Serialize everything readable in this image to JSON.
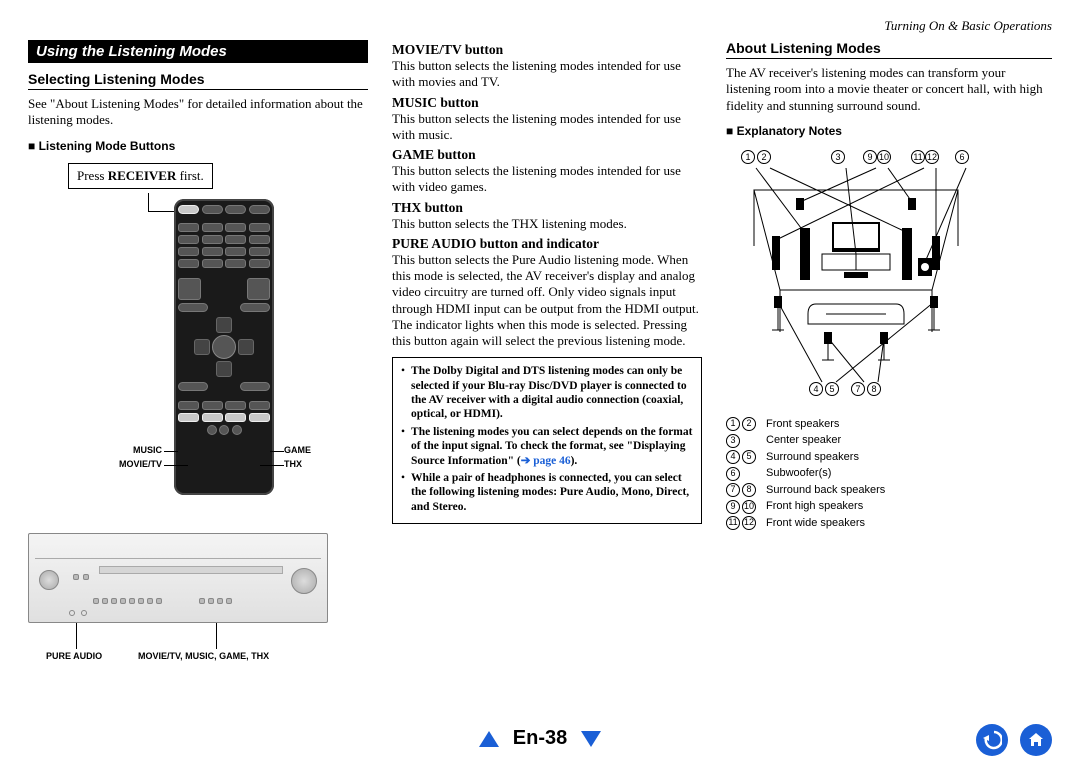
{
  "breadcrumb": "Turning On & Basic Operations",
  "banner": "Using the Listening Modes",
  "left": {
    "h2": "Selecting Listening Modes",
    "intro": "See \"About Listening Modes\" for detailed information about the listening modes.",
    "buttons_heading": "Listening Mode Buttons",
    "callout_prefix": "Press ",
    "callout_bold": "RECEIVER",
    "callout_suffix": " first.",
    "remote_labels": {
      "music": "MUSIC",
      "movietv": "MOVIE/TV",
      "game": "GAME",
      "thx": "THX"
    },
    "receiver_labels": {
      "pure": "PURE AUDIO",
      "modes": "MOVIE/TV, MUSIC, GAME, THX"
    }
  },
  "mid": {
    "items": [
      {
        "title": "MOVIE/TV button",
        "text": "This button selects the listening modes intended for use with movies and TV."
      },
      {
        "title": "MUSIC button",
        "text": "This button selects the listening modes intended for use with music."
      },
      {
        "title": "GAME button",
        "text": "This button selects the listening modes intended for use with video games."
      },
      {
        "title": "THX button",
        "text": "This button selects the THX listening modes."
      },
      {
        "title": "PURE AUDIO button and indicator",
        "text": "This button selects the Pure Audio listening mode. When this mode is selected, the AV receiver's display and analog video circuitry are turned off. Only video signals input through HDMI input can be output from the HDMI output. The indicator lights when this mode is selected. Pressing this button again will select the previous listening mode."
      }
    ],
    "notes": [
      {
        "pre": "The Dolby Digital and DTS listening modes can only be selected if your Blu-ray Disc/DVD player is connected to the AV receiver with a digital audio connection (coaxial, optical, or HDMI).",
        "link": ""
      },
      {
        "pre": "The listening modes you can select depends on the format of the input signal. To check the format, see \"Displaying Source Information\" (",
        "link": "➔ page 46",
        "post": ")."
      },
      {
        "pre": "While a pair of headphones is connected, you can select the following listening modes: Pure Audio, Mono, Direct, and Stereo.",
        "link": ""
      }
    ]
  },
  "right": {
    "h2": "About Listening Modes",
    "intro": "The AV receiver's listening modes can transform your listening room into a movie theater or concert hall, with high fidelity and stunning surround sound.",
    "expl_heading": "Explanatory Notes",
    "diagram_nums_top": [
      "1",
      "2",
      "3",
      "9",
      "10",
      "11",
      "12",
      "6"
    ],
    "diagram_nums_bot": [
      "4",
      "5",
      "7",
      "8"
    ],
    "legend": [
      {
        "nums": [
          "1",
          "2"
        ],
        "label": "Front speakers"
      },
      {
        "nums": [
          "3"
        ],
        "label": "Center speaker"
      },
      {
        "nums": [
          "4",
          "5"
        ],
        "label": "Surround speakers"
      },
      {
        "nums": [
          "6"
        ],
        "label": "Subwoofer(s)"
      },
      {
        "nums": [
          "7",
          "8"
        ],
        "label": "Surround back speakers"
      },
      {
        "nums": [
          "9",
          "10"
        ],
        "label": "Front high speakers"
      },
      {
        "nums": [
          "11",
          "12"
        ],
        "label": "Front wide speakers"
      }
    ]
  },
  "footer": {
    "page": "En-38"
  },
  "colors": {
    "link": "#1a5fd6"
  }
}
